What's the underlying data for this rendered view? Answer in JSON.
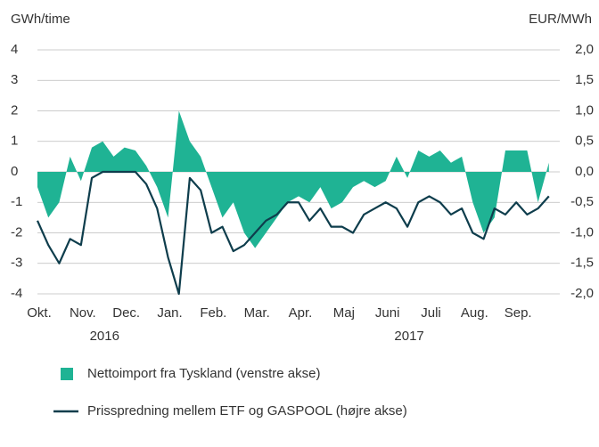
{
  "chart_data": {
    "type": "area_line",
    "y_label": "GWh/time",
    "y2_label": "EUR/MWh",
    "categories": [
      "Okt.",
      null,
      null,
      null,
      "Nov.",
      null,
      null,
      null,
      "Dec.",
      null,
      null,
      null,
      "Jan.",
      null,
      null,
      null,
      "Feb.",
      null,
      null,
      null,
      "Mar.",
      null,
      null,
      null,
      "Apr.",
      null,
      null,
      null,
      "Maj",
      null,
      null,
      null,
      "Juni",
      null,
      null,
      null,
      "Juli",
      null,
      null,
      null,
      "Aug.",
      null,
      null,
      null,
      "Sep.",
      null,
      null,
      null
    ],
    "years": [
      null,
      null,
      null,
      null,
      null,
      null,
      "2016",
      null,
      null,
      null,
      null,
      null,
      null,
      null,
      null,
      null,
      null,
      null,
      null,
      null,
      null,
      null,
      null,
      null,
      null,
      null,
      null,
      null,
      null,
      null,
      null,
      null,
      null,
      null,
      "2017",
      null,
      null,
      null,
      null,
      null,
      null,
      null,
      null,
      null,
      null,
      null,
      null,
      null
    ],
    "series": [
      {
        "name": "Nettoimport fra Tyskland (venstre akse)",
        "color": "#1fb394",
        "kind": "area",
        "values": [
          -0.5,
          -1.5,
          -1,
          0.5,
          -0.3,
          0.8,
          1,
          0.5,
          0.8,
          0.7,
          0.2,
          -0.5,
          -1.5,
          2,
          1,
          0.5,
          -0.5,
          -1.5,
          -1,
          -2,
          -2.5,
          -2,
          -1.5,
          -1,
          -0.8,
          -1,
          -0.5,
          -1.2,
          -1,
          -0.5,
          -0.3,
          -0.5,
          -0.3,
          0.5,
          -0.2,
          0.7,
          0.5,
          0.7,
          0.3,
          0.5,
          -1,
          -2,
          -1.5,
          0.7,
          0.7,
          0.7,
          -1,
          0.3
        ]
      },
      {
        "name": "Prisspredning mellem ETF og GASPOOL (højre akse)",
        "color": "#0e3d4c",
        "kind": "line",
        "axis": "y2",
        "values": [
          -0.8,
          -1.2,
          -1.5,
          -1.1,
          -1.2,
          -0.1,
          0.0,
          0.0,
          0.0,
          0.0,
          -0.2,
          -0.6,
          -1.4,
          -2.0,
          -0.1,
          -0.3,
          -1.0,
          -0.9,
          -1.3,
          -1.2,
          -1.0,
          -0.8,
          -0.7,
          -0.5,
          -0.5,
          -0.8,
          -0.6,
          -0.9,
          -0.9,
          -1.0,
          -0.7,
          -0.6,
          -0.5,
          -0.6,
          -0.9,
          -0.5,
          -0.4,
          -0.5,
          -0.7,
          -0.6,
          -1.0,
          -1.1,
          -0.6,
          -0.7,
          -0.5,
          -0.7,
          -0.6,
          -0.4
        ]
      }
    ],
    "ylim": [
      -4,
      4
    ],
    "yticks": [
      -4,
      -3,
      -2,
      -1,
      0,
      1,
      2,
      3,
      4
    ],
    "y2lim": [
      -2,
      2
    ],
    "y2ticks": [
      {
        "value": -2,
        "label": "-2,0"
      },
      {
        "value": -1.5,
        "label": "-1,5"
      },
      {
        "value": -1,
        "label": "-1,0"
      },
      {
        "value": -0.5,
        "label": "-0,5"
      },
      {
        "value": 0,
        "label": "0,0"
      },
      {
        "value": 0.5,
        "label": "0,5"
      },
      {
        "value": 1,
        "label": "1,0"
      },
      {
        "value": 1.5,
        "label": "1,5"
      },
      {
        "value": 2,
        "label": "2,0"
      }
    ],
    "grid": true
  }
}
